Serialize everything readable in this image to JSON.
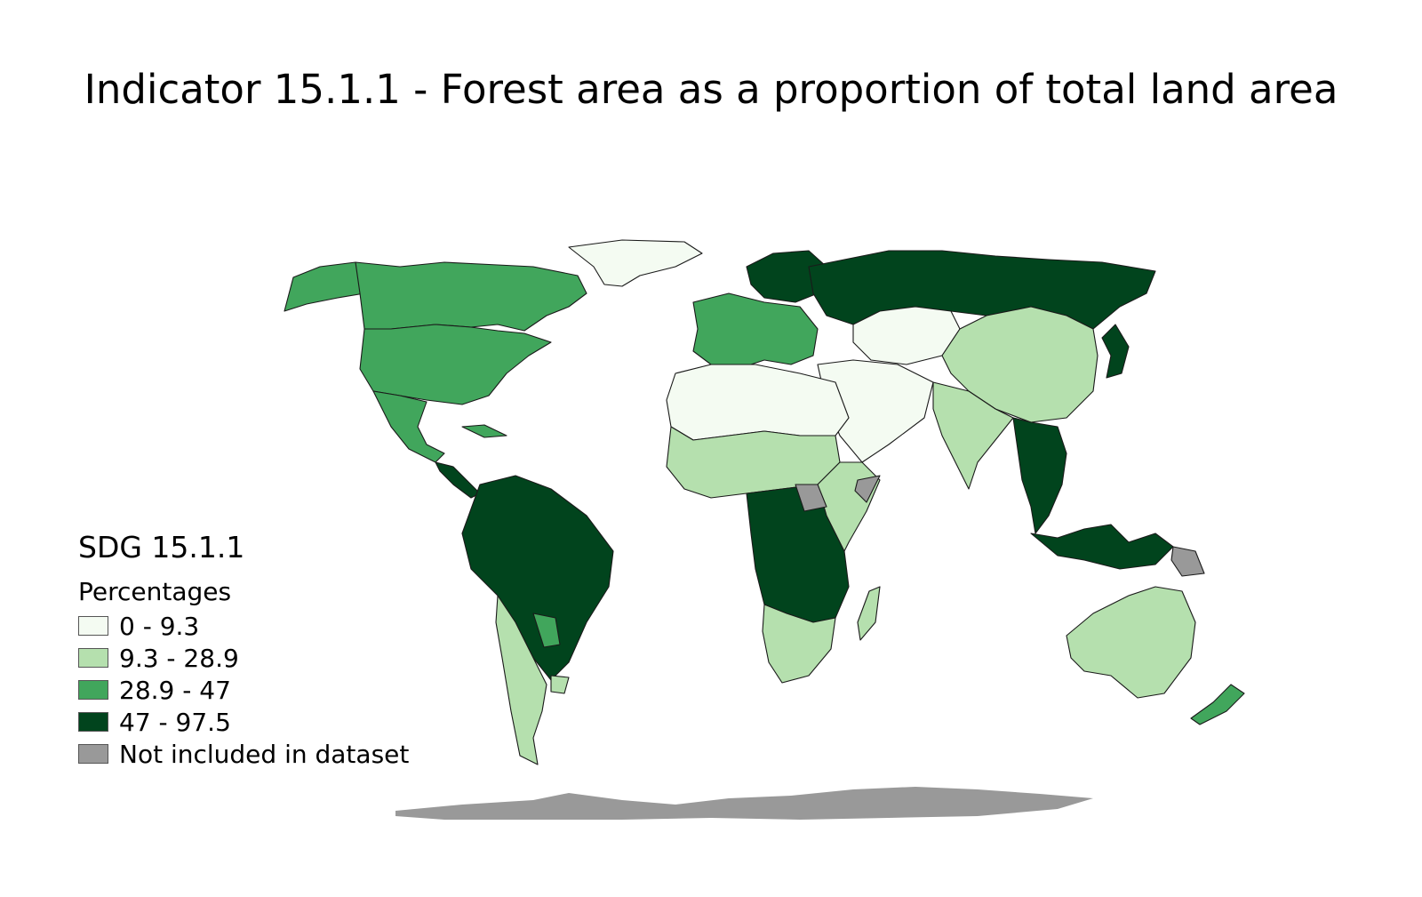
{
  "title": "Indicator 15.1.1 - Forest area as a proportion of total land area",
  "legend": {
    "title": "SDG 15.1.1",
    "subtitle": "Percentages",
    "classes": [
      {
        "label": "0 - 9.3",
        "color": "#f4fbf2"
      },
      {
        "label": "9.3 - 28.9",
        "color": "#b5e0ae"
      },
      {
        "label": "28.9 - 47",
        "color": "#41a65c"
      },
      {
        "label": "47 - 97.5",
        "color": "#01441d"
      },
      {
        "label": "Not included in dataset",
        "color": "#999999"
      }
    ]
  },
  "regions": [
    {
      "name": "canada",
      "cls": 2
    },
    {
      "name": "united-states",
      "cls": 2
    },
    {
      "name": "alaska",
      "cls": 2
    },
    {
      "name": "mexico",
      "cls": 2
    },
    {
      "name": "central-america",
      "cls": 3
    },
    {
      "name": "cuba",
      "cls": 2
    },
    {
      "name": "greenland",
      "cls": 0
    },
    {
      "name": "brazil-amazon",
      "cls": 3
    },
    {
      "name": "andes",
      "cls": 1
    },
    {
      "name": "paraguay",
      "cls": 2
    },
    {
      "name": "uruguay",
      "cls": 1
    },
    {
      "name": "iceland-uk-west-europe",
      "cls": 2
    },
    {
      "name": "scandinavia",
      "cls": 3
    },
    {
      "name": "russia",
      "cls": 3
    },
    {
      "name": "central-asia",
      "cls": 0
    },
    {
      "name": "middle-east",
      "cls": 0
    },
    {
      "name": "china",
      "cls": 1
    },
    {
      "name": "india",
      "cls": 1
    },
    {
      "name": "southeast-asia",
      "cls": 3
    },
    {
      "name": "indonesia",
      "cls": 3
    },
    {
      "name": "japan",
      "cls": 3
    },
    {
      "name": "north-africa",
      "cls": 0
    },
    {
      "name": "sahel",
      "cls": 1
    },
    {
      "name": "central-africa",
      "cls": 3
    },
    {
      "name": "east-africa",
      "cls": 1
    },
    {
      "name": "southern-africa",
      "cls": 1
    },
    {
      "name": "madagascar",
      "cls": 1
    },
    {
      "name": "australia",
      "cls": 1
    },
    {
      "name": "new-zealand",
      "cls": 2
    },
    {
      "name": "papua-new-guinea",
      "cls": 4
    },
    {
      "name": "south-sudan",
      "cls": 4
    },
    {
      "name": "somalia",
      "cls": 4
    },
    {
      "name": "antarctica",
      "cls": 4
    }
  ]
}
